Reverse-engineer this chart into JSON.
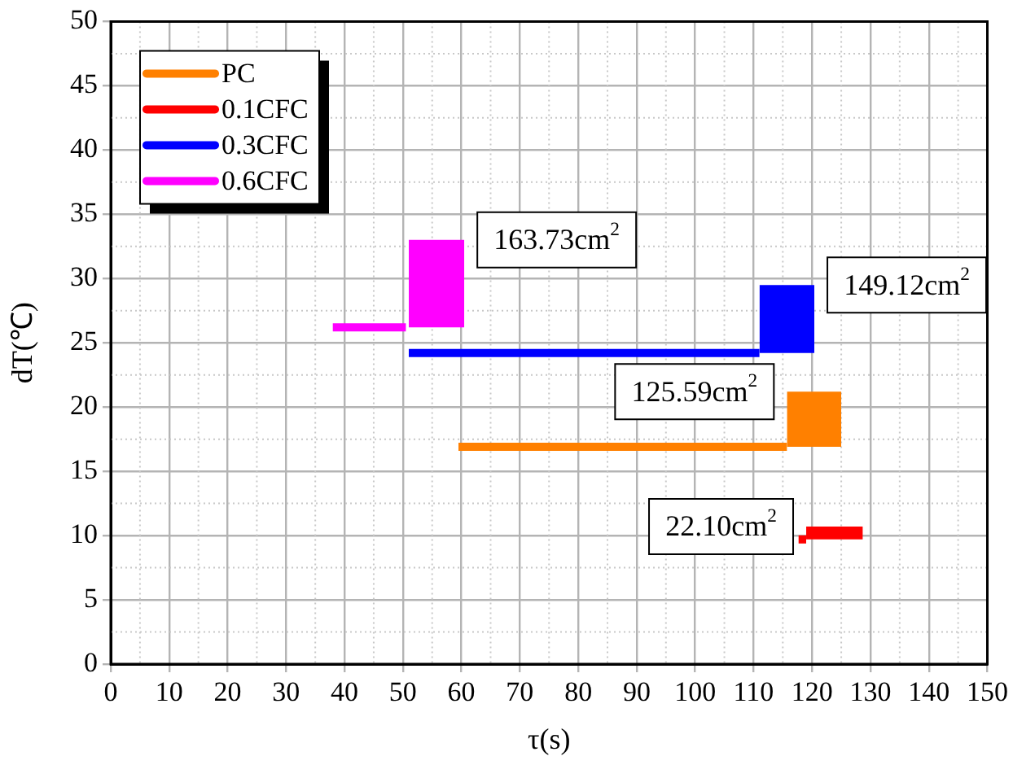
{
  "chart_data": {
    "type": "line",
    "xlabel": "τ(s)",
    "ylabel": "dT(℃)",
    "xlim": [
      0,
      150
    ],
    "xticks": [
      0,
      10,
      20,
      30,
      40,
      50,
      60,
      70,
      80,
      90,
      100,
      110,
      120,
      130,
      140,
      150
    ],
    "ylim": [
      0,
      50
    ],
    "yticks": [
      0,
      5,
      10,
      15,
      20,
      25,
      30,
      35,
      40,
      45,
      50
    ],
    "grid": true,
    "legend": "top left",
    "marker": "none",
    "line_style": "solid",
    "series": [
      {
        "name": "PC",
        "color": "#ff8000",
        "x": [
          59.5,
          115.7,
          125
        ],
        "values": [
          16.9,
          16.9,
          null
        ],
        "lower": [
          null,
          16.9,
          16.9
        ],
        "upper": [
          null,
          21.2,
          21.2
        ]
      },
      {
        "name": "0.1CFC",
        "color": "#ff0000",
        "x": [
          117.7,
          119,
          128.7
        ],
        "values": [
          9.7,
          9.7,
          null
        ],
        "lower": [
          null,
          9.7,
          9.7
        ],
        "upper": [
          null,
          10.7,
          10.7
        ]
      },
      {
        "name": "0.3CFC",
        "color": "#0000ff",
        "x": [
          51,
          111,
          120.4
        ],
        "values": [
          24.2,
          24.2,
          null
        ],
        "lower": [
          null,
          24.2,
          24.2
        ],
        "upper": [
          null,
          29.5,
          29.5
        ]
      },
      {
        "name": "0.6CFC",
        "color": "#ff00ff",
        "x": [
          38,
          50.5,
          51,
          60.5
        ],
        "values": [
          26.2,
          26.2,
          null,
          null
        ],
        "lower": [
          null,
          null,
          26.2,
          26.2
        ],
        "upper": [
          null,
          null,
          33,
          33
        ]
      }
    ],
    "annotations": [
      "125.59cm$^{2}$",
      "22.10cm$^{2}$",
      "149.12cm$^{2}$",
      "163.73cm$^{2}$"
    ]
  }
}
